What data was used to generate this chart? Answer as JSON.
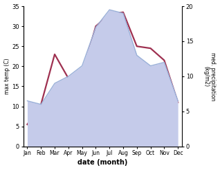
{
  "months": [
    "Jan",
    "Feb",
    "Mar",
    "Apr",
    "May",
    "Jun",
    "Jul",
    "Aug",
    "Sep",
    "Oct",
    "Nov",
    "Dec"
  ],
  "month_positions": [
    0,
    1,
    2,
    3,
    4,
    5,
    6,
    7,
    8,
    9,
    10,
    11
  ],
  "temperature": [
    5.5,
    10.5,
    23.0,
    17.0,
    18.0,
    30.0,
    33.0,
    33.5,
    25.0,
    24.5,
    21.5,
    11.0
  ],
  "precipitation": [
    6.5,
    6.0,
    9.0,
    10.0,
    11.5,
    17.0,
    19.5,
    19.0,
    13.0,
    11.5,
    12.0,
    6.5
  ],
  "temp_color": "#9e3050",
  "precip_edge_color": "#9ab0d8",
  "precip_fill_color": "#c5cbea",
  "temp_ylim": [
    0,
    35
  ],
  "precip_ylim": [
    0,
    20
  ],
  "ylabel_left": "max temp (C)",
  "ylabel_right": "med. precipitation\n(kg/m2)",
  "xlabel": "date (month)",
  "left_yticks": [
    0,
    5,
    10,
    15,
    20,
    25,
    30,
    35
  ],
  "right_yticks": [
    0,
    5,
    10,
    15,
    20
  ],
  "temp_linewidth": 1.6,
  "background_color": "#ffffff"
}
